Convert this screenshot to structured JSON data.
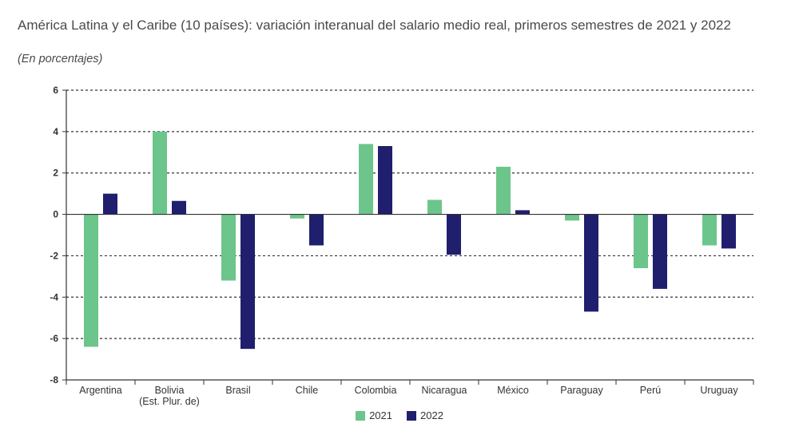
{
  "chart_data": {
    "type": "bar",
    "title": "América Latina y el Caribe (10 países): variación interanual del salario medio real, primeros semestres de 2021 y 2022",
    "subtitle": "(En porcentajes)",
    "categories": [
      [
        "Argentina"
      ],
      [
        "Bolivia",
        "(Est. Plur. de)"
      ],
      [
        "Brasil"
      ],
      [
        "Chile"
      ],
      [
        "Colombia"
      ],
      [
        "Nicaragua"
      ],
      [
        "México"
      ],
      [
        "Paraguay"
      ],
      [
        "Perú"
      ],
      [
        "Uruguay"
      ]
    ],
    "series": [
      {
        "name": "2021",
        "color": "#6cc58a",
        "values": [
          -6.4,
          4.0,
          -3.2,
          -0.2,
          3.4,
          0.7,
          2.3,
          -0.3,
          -2.6,
          -1.5
        ]
      },
      {
        "name": "2022",
        "color": "#1f1f6e",
        "values": [
          1.0,
          0.65,
          -6.5,
          -1.5,
          3.3,
          -1.95,
          0.2,
          -4.7,
          -3.6,
          -1.65
        ]
      }
    ],
    "ylim": [
      -8,
      6
    ],
    "yticks": [
      6,
      4,
      2,
      0,
      -2,
      -4,
      -6,
      -8
    ],
    "grid": "dashed horizontal",
    "legend_position": "bottom-center",
    "xlabel": "",
    "ylabel": ""
  }
}
